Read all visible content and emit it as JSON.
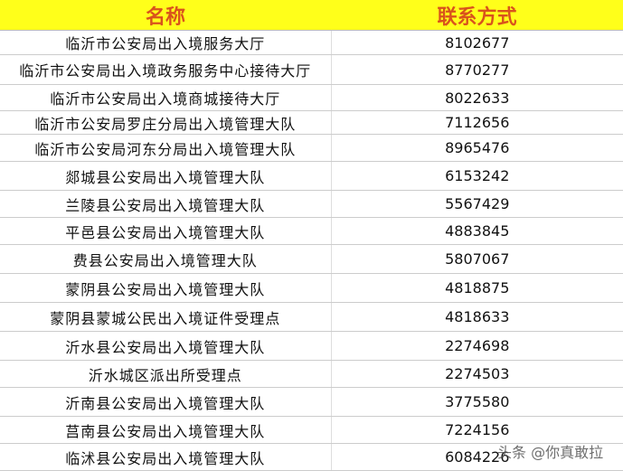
{
  "header": {
    "name": "名称",
    "contact": "联系方式"
  },
  "rows": [
    {
      "name": "临沂市公安局出入境服务大厅",
      "phone": "8102677"
    },
    {
      "name": "临沂市公安局出入境政务服务中心接待大厅",
      "phone": "8770277"
    },
    {
      "name": "临沂市公安局出入境商城接待大厅",
      "phone": "8022633"
    },
    {
      "name": "临沂市公安局罗庄分局出入境管理大队",
      "phone": "7112656"
    },
    {
      "name": "临沂市公安局河东分局出入境管理大队",
      "phone": "8965476"
    },
    {
      "name": "郯城县公安局出入境管理大队",
      "phone": "6153242"
    },
    {
      "name": "兰陵县公安局出入境管理大队",
      "phone": "5567429"
    },
    {
      "name": "平邑县公安局出入境管理大队",
      "phone": "4883845"
    },
    {
      "name": "费县公安局出入境管理大队",
      "phone": "5807067"
    },
    {
      "name": "蒙阴县公安局出入境管理大队",
      "phone": "4818875"
    },
    {
      "name": "蒙阴县蒙城公民出入境证件受理点",
      "phone": "4818633"
    },
    {
      "name": "沂水县公安局出入境管理大队",
      "phone": "2274698"
    },
    {
      "name": "沂水城区派出所受理点",
      "phone": "2274503"
    },
    {
      "name": "沂南县公安局出入境管理大队",
      "phone": "3775580"
    },
    {
      "name": "莒南县公安局出入境管理大队",
      "phone": "7224156"
    },
    {
      "name": "临沭县公安局出入境管理大队",
      "phone": "6084226"
    }
  ],
  "watermark": "头条 @你真敢拉"
}
